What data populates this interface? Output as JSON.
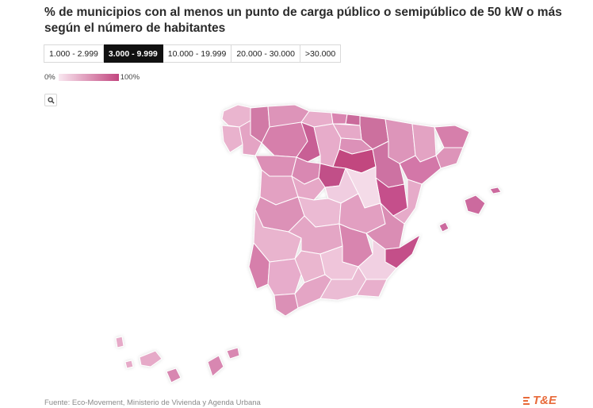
{
  "title": "% de municipios con al menos un punto de carga público o semipúblico de 50 kW o más según el número de habitantes",
  "tabs": [
    {
      "label": "1.000 - 2.999",
      "active": false
    },
    {
      "label": "3.000 - 9.999",
      "active": true
    },
    {
      "label": "10.000 - 19.999",
      "active": false
    },
    {
      "label": "20.000 - 30.000",
      "active": false
    },
    {
      "label": ">30.000",
      "active": false
    }
  ],
  "legend": {
    "min_label": "0%",
    "max_label": "100%",
    "color_min": "#f9e7f0",
    "color_max": "#c2467f"
  },
  "search": {
    "icon": "search-icon"
  },
  "footer": {
    "source": "Fuente: Eco-Movement, Ministerio de Vivienda y Agenda Urbana"
  },
  "logo": {
    "text": "T&E",
    "color": "#e86a3a"
  },
  "colors": {
    "accent": "#c2467f",
    "active_tab_bg": "#111111"
  }
}
